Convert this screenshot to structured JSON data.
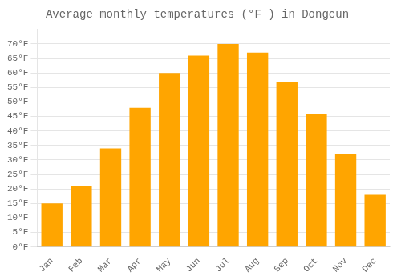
{
  "chart_data": {
    "type": "bar",
    "title": "Average monthly temperatures (°F ) in Dongcun",
    "categories": [
      "Jan",
      "Feb",
      "Mar",
      "Apr",
      "May",
      "Jun",
      "Jul",
      "Aug",
      "Sep",
      "Oct",
      "Nov",
      "Dec"
    ],
    "values": [
      15,
      21,
      34,
      48,
      60,
      66,
      70,
      67,
      57,
      46,
      32,
      18
    ],
    "color": "#FFA500",
    "ylim": [
      0,
      75
    ],
    "yticks": [
      {
        "value": 0,
        "label": "0°F"
      },
      {
        "value": 5,
        "label": "5°F"
      },
      {
        "value": 10,
        "label": "10°F"
      },
      {
        "value": 15,
        "label": "15°F"
      },
      {
        "value": 20,
        "label": "20°F"
      },
      {
        "value": 25,
        "label": "25°F"
      },
      {
        "value": 30,
        "label": "30°F"
      },
      {
        "value": 35,
        "label": "35°F"
      },
      {
        "value": 40,
        "label": "40°F"
      },
      {
        "value": 45,
        "label": "45°F"
      },
      {
        "value": 50,
        "label": "50°F"
      },
      {
        "value": 55,
        "label": "55°F"
      },
      {
        "value": 60,
        "label": "60°F"
      },
      {
        "value": 65,
        "label": "65°F"
      },
      {
        "value": 70,
        "label": "70°F"
      }
    ],
    "grid": true
  }
}
